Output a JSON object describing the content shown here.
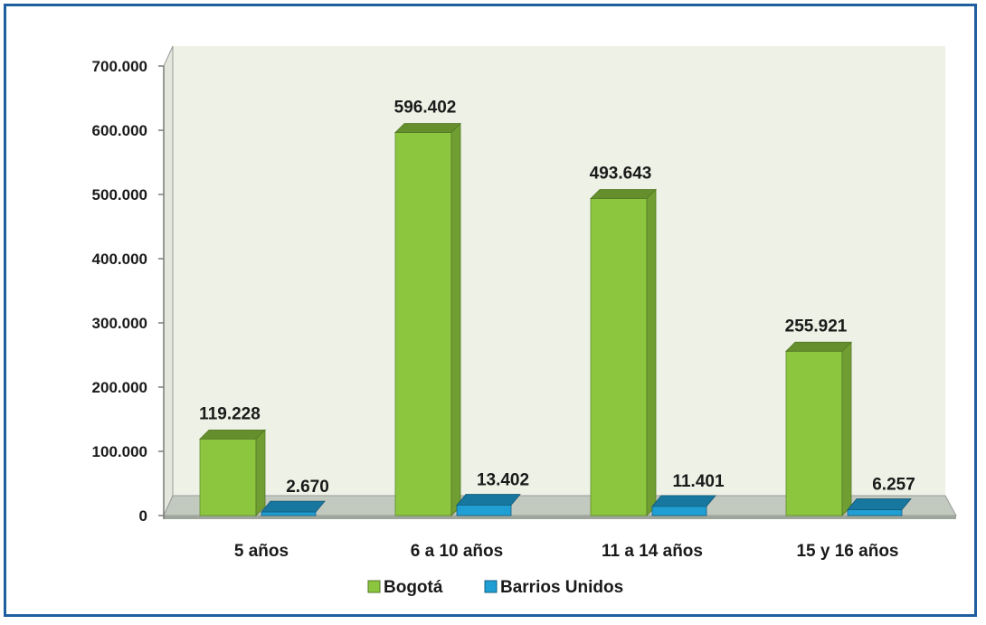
{
  "chart_data": {
    "type": "bar",
    "categories": [
      "5 años",
      "6  a 10 años",
      "11 a 14 años",
      "15  y 16 años"
    ],
    "series": [
      {
        "name": "Bogotá",
        "values": [
          119228,
          596402,
          493643,
          255921
        ],
        "labels": [
          "119.228",
          "596.402",
          "493.643",
          "255.921"
        ],
        "color": "#8cc63f"
      },
      {
        "name": "Barrios Unidos",
        "values": [
          2670,
          13402,
          11401,
          6257
        ],
        "labels": [
          "2.670",
          "13.402",
          "11.401",
          "6.257"
        ],
        "color": "#1f9fd4"
      }
    ],
    "ylim": [
      0,
      700000
    ],
    "yticks": [
      0,
      100000,
      200000,
      300000,
      400000,
      500000,
      600000,
      700000
    ],
    "ytick_labels": [
      "0",
      "100.000",
      "200.000",
      "300.000",
      "400.000",
      "500.000",
      "600.000",
      "700.000"
    ],
    "title": "",
    "xlabel": "",
    "ylabel": "",
    "legend_position": "bottom",
    "style": "3d-clustered",
    "colors": {
      "wall": "#eef2e6",
      "floor": "#c2c9bf",
      "frame_border": "#1f5fa0"
    }
  }
}
